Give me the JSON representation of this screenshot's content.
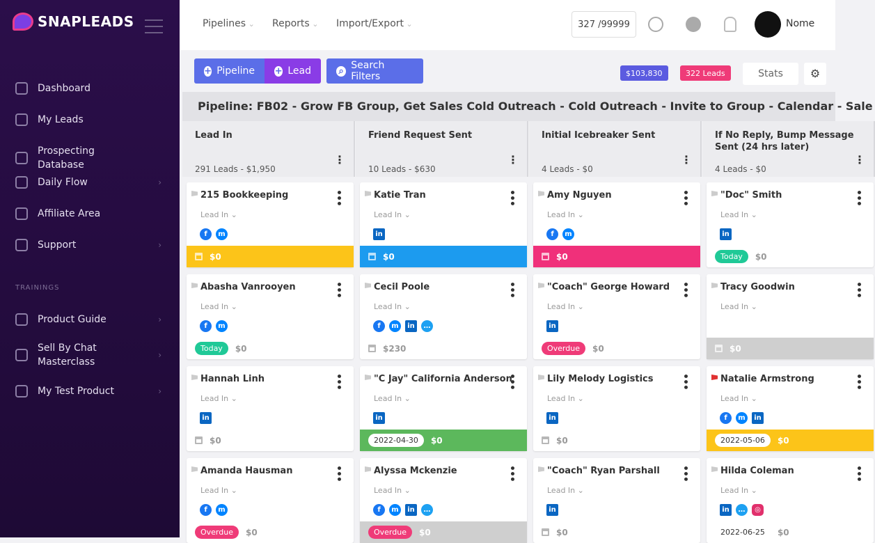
{
  "sidebar": {
    "logo": "SNAPLEADS",
    "nav": [
      "Dashboard",
      "My Leads",
      "Prospecting Database",
      "Daily Flow",
      "Affiliate Area",
      "Support"
    ],
    "section": "TRAININGS",
    "trainings": [
      "Product Guide",
      "Sell By Chat Masterclass",
      "My Test Product"
    ]
  },
  "topbar": {
    "menu": [
      "Pipelines",
      "Reports",
      "Import/Export"
    ],
    "counter": "327 /99999",
    "user": "Nome"
  },
  "toolbar": {
    "buttons": [
      "Pipeline",
      "Lead",
      "Search Filters"
    ],
    "revenue": "$103,830",
    "leads": "322 Leads",
    "stats": "Stats"
  },
  "pipeline_title": "Pipeline: FB02 - Grow FB Group, Get Sales Cold Outreach - Cold Outreach - Invite to Group - Calendar - Sale",
  "columns": [
    {
      "name": "Lead In",
      "summary": "291 Leads - $1,950",
      "cards": [
        {
          "name": "215 Bookkeeping",
          "stage": "Lead In",
          "channels": [
            "facebook",
            "messenger"
          ],
          "color": "#fcc419",
          "value": "$0"
        },
        {
          "name": "Abasha Vanrooyen",
          "stage": "Lead In",
          "channels": [
            "facebook",
            "messenger"
          ],
          "badge": "Today",
          "value": "$0"
        },
        {
          "name": "Hannah Linh",
          "stage": "Lead In",
          "channels": [
            "linkedin"
          ],
          "value": "$0"
        },
        {
          "name": "Amanda Hausman",
          "stage": "Lead In",
          "channels": [
            "facebook",
            "messenger"
          ],
          "badge": "Overdue",
          "value": "$0"
        }
      ]
    },
    {
      "name": "Friend Request Sent",
      "summary": "10 Leads - $630",
      "cards": [
        {
          "name": "Katie Tran",
          "stage": "Lead In",
          "channels": [
            "linkedin"
          ],
          "color": "#1c9bef",
          "value": "$0"
        },
        {
          "name": "Cecil Poole",
          "stage": "Lead In",
          "channels": [
            "facebook",
            "messenger",
            "linkedin",
            "chat"
          ],
          "value": "$230"
        },
        {
          "name": "\"C Jay\" California Anderson",
          "stage": "Lead In",
          "channels": [
            "linkedin"
          ],
          "color": "#5cb85c",
          "date": "2022-04-30",
          "value": "$0"
        },
        {
          "name": "Alyssa Mckenzie",
          "stage": "Lead In",
          "channels": [
            "facebook",
            "messenger",
            "linkedin",
            "chat"
          ],
          "color": "#cfcfcf",
          "badge": "Overdue",
          "value": "$0"
        }
      ]
    },
    {
      "name": "Initial Icebreaker Sent",
      "summary": "4 Leads - $0",
      "cards": [
        {
          "name": "Amy Nguyen",
          "stage": "Lead In",
          "channels": [
            "facebook",
            "messenger"
          ],
          "color": "#f0307a",
          "value": "$0"
        },
        {
          "name": "\"Coach\" George Howard",
          "stage": "Lead In",
          "channels": [
            "linkedin"
          ],
          "badge": "Overdue",
          "value": "$0"
        },
        {
          "name": "Lily Melody Logistics",
          "stage": "Lead In",
          "channels": [
            "linkedin"
          ],
          "value": "$0"
        },
        {
          "name": "\"Coach\" Ryan Parshall",
          "stage": "Lead In",
          "channels": [
            "linkedin"
          ],
          "value": "$0"
        }
      ]
    },
    {
      "name": "If No Reply, Bump Message Sent (24 hrs later)",
      "summary": "4 Leads - $0",
      "cards": [
        {
          "name": "\"Doc\" Smith",
          "stage": "Lead In",
          "channels": [
            "linkedin"
          ],
          "badge": "Today",
          "value": "$0"
        },
        {
          "name": "Tracy Goodwin",
          "stage": "Lead In",
          "channels": [],
          "color": "#cfcfcf",
          "value": "$0"
        },
        {
          "name": "Natalie Armstrong",
          "stage": "Lead In",
          "channels": [
            "facebook",
            "messenger",
            "linkedin"
          ],
          "color": "#fcc419",
          "date": "2022-05-06",
          "value": "$0",
          "flag": "#e03131"
        },
        {
          "name": "Hilda Coleman",
          "stage": "Lead In",
          "channels": [
            "linkedin",
            "chat",
            "instagram"
          ],
          "date": "2022-06-25",
          "value": "$0"
        }
      ]
    }
  ]
}
